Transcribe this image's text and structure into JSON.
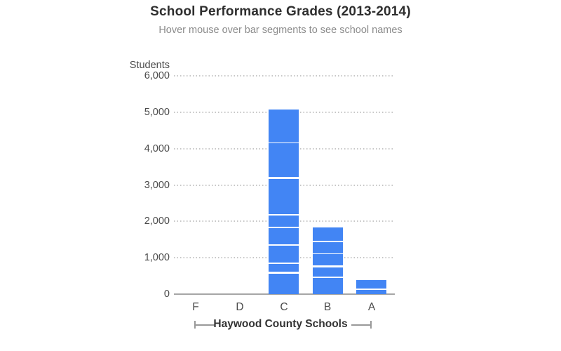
{
  "chart_data": {
    "type": "bar",
    "stacked": true,
    "title": "School Performance Grades (2013-2014)",
    "subtitle": "Hover mouse over bar segments to see school names",
    "ylabel": "Students",
    "xlabel": "Haywood County Schools",
    "categories": [
      "F",
      "D",
      "C",
      "B",
      "A"
    ],
    "segments": {
      "F": [],
      "D": [],
      "C": [
        600,
        260,
        510,
        480,
        350,
        1010,
        970,
        900
      ],
      "B": [
        490,
        290,
        355,
        340,
        360
      ],
      "A": [
        145,
        240
      ]
    },
    "totals": {
      "F": 0,
      "D": 0,
      "C": 5080,
      "B": 1835,
      "A": 385
    },
    "ylim": [
      0,
      6000
    ],
    "yticks": [
      0,
      1000,
      2000,
      3000,
      4000,
      5000,
      6000
    ],
    "ytick_labels": [
      "0",
      "1,000",
      "2,000",
      "3,000",
      "4,000",
      "5,000",
      "6,000"
    ],
    "grid": "horizontal-dotted",
    "legend_position": "none",
    "bar_color": "#4285f4"
  },
  "colors": {
    "bar": "#4285f4",
    "title-text": "#2e2e2e",
    "subtitle-text": "#8b8b8b",
    "tick-text": "#4a4a4a",
    "grid-line": "#c6c6c6",
    "axis-line": "#a6a6a6",
    "xlabel-text": "#333333",
    "bracket-line": "#999999",
    "background": "#ffffff"
  }
}
